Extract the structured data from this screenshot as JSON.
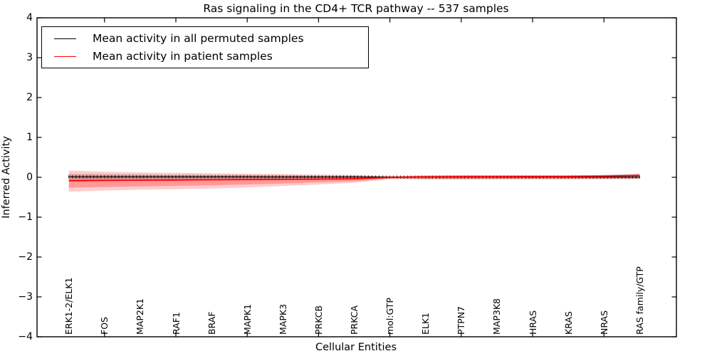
{
  "title": "Ras signaling in the CD4+ TCR pathway -- 537 samples",
  "legend": {
    "items": [
      {
        "label": "Mean activity in all permuted samples",
        "color": "#000000"
      },
      {
        "label": "Mean activity in patient samples",
        "color": "#ff0000"
      }
    ]
  },
  "axes": {
    "ylabel": "Inferred Activity",
    "xlabel": "Cellular Entities",
    "y_ticks": [
      "4",
      "3",
      "2",
      "1",
      "0",
      "−1",
      "−2",
      "−3",
      "−4"
    ],
    "y_tick_values": [
      4,
      3,
      2,
      1,
      0,
      -1,
      -2,
      -3,
      -4
    ],
    "grid": false,
    "legend_position": "upper left"
  },
  "chart_data": {
    "type": "line",
    "title": "Ras signaling in the CD4+ TCR pathway -- 537 samples",
    "xlabel": "Cellular Entities",
    "ylabel": "Inferred Activity",
    "ylim": [
      -4,
      4
    ],
    "categories": [
      "ERK1-2/ELK1",
      "FOS",
      "MAP2K1",
      "RAF1",
      "BRAF",
      "MAPK1",
      "MAPK3",
      "PRKCB",
      "PRKCA",
      "mol:GTP",
      "ELK1",
      "PTPN7",
      "MAP3K8",
      "HRAS",
      "KRAS",
      "NRAS",
      "RAS family/GTP"
    ],
    "n_entities": 161,
    "labeled_every": 10,
    "marker": "+",
    "top_tick_category_indices": [
      1,
      3,
      5,
      7,
      9,
      11,
      13,
      15
    ],
    "series": [
      {
        "name": "Mean activity in all permuted samples",
        "color": "#000000",
        "values": [
          0.01,
          0.01,
          0.01,
          0.01,
          0.01,
          0.01,
          0.008,
          0.008,
          0.008,
          0.006,
          0.006,
          0.006,
          0.006,
          0.006,
          0.006,
          0.006,
          0.006
        ]
      },
      {
        "name": "Mean activity in patient samples",
        "color": "#ff0000",
        "values": [
          -0.085,
          -0.078,
          -0.073,
          -0.068,
          -0.063,
          -0.058,
          -0.053,
          -0.047,
          -0.038,
          -0.004,
          0.01,
          0.014,
          0.016,
          0.018,
          0.02,
          0.028,
          0.048
        ]
      }
    ],
    "bands": [
      {
        "name": "patient-band-outer",
        "color": "#ff0000",
        "opacity": 0.2,
        "upper": [
          0.17,
          0.14,
          0.12,
          0.11,
          0.1,
          0.09,
          0.08,
          0.07,
          0.06,
          0.025,
          0.04,
          0.05,
          0.05,
          0.05,
          0.05,
          0.06,
          0.09
        ],
        "lower": [
          -0.36,
          -0.33,
          -0.31,
          -0.3,
          -0.28,
          -0.255,
          -0.22,
          -0.18,
          -0.14,
          -0.045,
          -0.055,
          -0.055,
          -0.05,
          -0.05,
          -0.05,
          -0.045,
          -0.03
        ]
      },
      {
        "name": "patient-band-inner",
        "color": "#ff0000",
        "opacity": 0.25,
        "upper": [
          0.07,
          0.06,
          0.055,
          0.05,
          0.045,
          0.045,
          0.04,
          0.035,
          0.03,
          0.012,
          0.03,
          0.035,
          0.035,
          0.035,
          0.035,
          0.04,
          0.065
        ],
        "lower": [
          -0.26,
          -0.245,
          -0.23,
          -0.215,
          -0.2,
          -0.18,
          -0.155,
          -0.125,
          -0.1,
          -0.028,
          -0.04,
          -0.04,
          -0.04,
          -0.04,
          -0.04,
          -0.035,
          -0.02
        ]
      },
      {
        "name": "permuted-band",
        "color": "#808080",
        "opacity": 0.3,
        "upper": [
          0.085,
          0.08,
          0.075,
          0.07,
          0.065,
          0.06,
          0.055,
          0.05,
          0.045,
          0.025,
          0.045,
          0.05,
          0.05,
          0.05,
          0.05,
          0.055,
          0.08
        ],
        "lower": [
          -0.075,
          -0.07,
          -0.065,
          -0.06,
          -0.055,
          -0.05,
          -0.045,
          -0.04,
          -0.035,
          -0.015,
          -0.035,
          -0.04,
          -0.04,
          -0.04,
          -0.04,
          -0.045,
          -0.05
        ]
      }
    ]
  }
}
